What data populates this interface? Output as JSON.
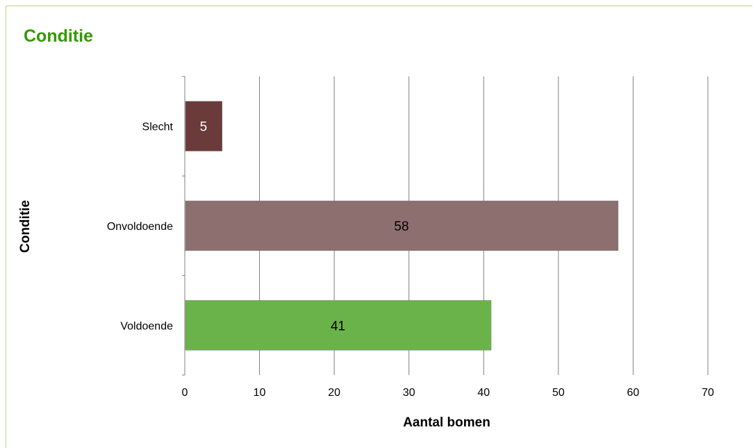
{
  "chart_data": {
    "type": "bar",
    "orientation": "horizontal",
    "title": "Conditie",
    "categories": [
      "Slecht",
      "Onvoldoende",
      "Voldoende"
    ],
    "values": [
      5,
      58,
      41
    ],
    "bar_colors": [
      "#6b3a3a",
      "#8e6f70",
      "#6ab34b"
    ],
    "data_label_colors": [
      "#ffffff",
      "#000000",
      "#000000"
    ],
    "xlabel": "Aantal bomen",
    "ylabel": "Conditie",
    "xlim": [
      0,
      70
    ],
    "xticks": [
      0,
      10,
      20,
      30,
      40,
      50,
      60,
      70
    ],
    "grid": "vertical",
    "legend": "none",
    "title_color": "#339900",
    "frame_color": "#b7d67a"
  }
}
